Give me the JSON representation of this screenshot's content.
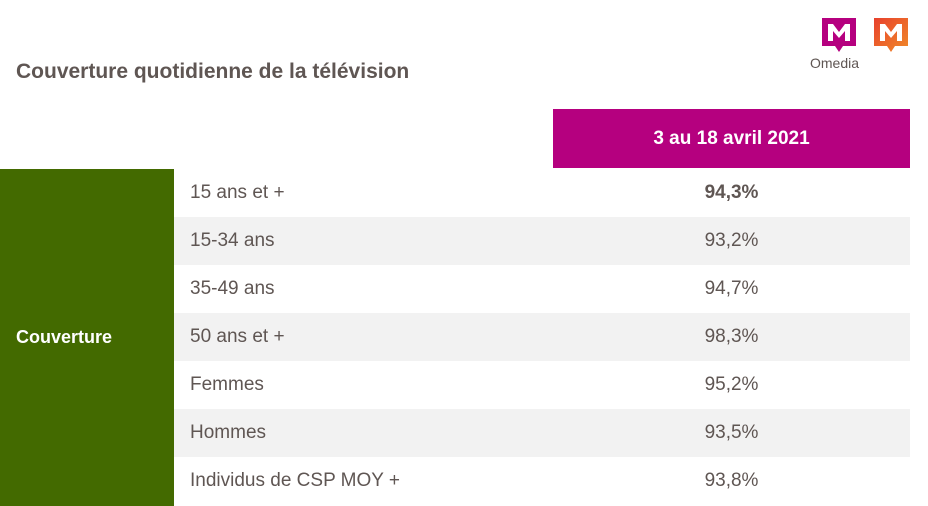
{
  "title": "Couverture quotidienne de la télévision",
  "logo": {
    "text": "Omedia",
    "colors": [
      "#b5007f",
      "#e8412c"
    ]
  },
  "header": {
    "period": "3 au 18 avril 2021"
  },
  "side_label": "Couverture",
  "colors": {
    "period_bg": "#b5007f",
    "side_bg": "#436a00",
    "stripe": "#f2f2f2",
    "text": "#5f5653"
  },
  "rows": [
    {
      "label": "15 ans et +",
      "value": "94,3%"
    },
    {
      "label": "15-34 ans",
      "value": "93,2%"
    },
    {
      "label": "35-49 ans",
      "value": "94,7%"
    },
    {
      "label": "50 ans et +",
      "value": "98,3%"
    },
    {
      "label": "Femmes",
      "value": "95,2%"
    },
    {
      "label": "Hommes",
      "value": "93,5%"
    },
    {
      "label": "Individus de CSP MOY +",
      "value": "93,8%"
    }
  ]
}
